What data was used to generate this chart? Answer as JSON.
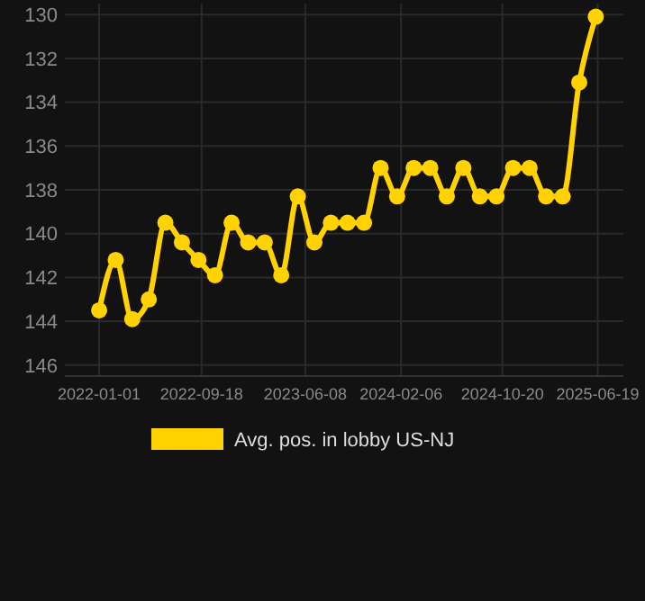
{
  "chart_data": {
    "type": "line",
    "x": [
      "2022-01-01",
      "2022-02-12",
      "2022-03-26",
      "2022-05-07",
      "2022-06-18",
      "2022-07-30",
      "2022-09-10",
      "2022-10-22",
      "2022-12-03",
      "2023-01-14",
      "2023-02-25",
      "2023-04-08",
      "2023-05-20",
      "2023-07-01",
      "2023-08-12",
      "2023-09-23",
      "2023-11-04",
      "2023-12-16",
      "2024-01-27",
      "2024-03-09",
      "2024-04-20",
      "2024-06-01",
      "2024-07-13",
      "2024-08-24",
      "2024-10-05",
      "2024-11-16",
      "2024-12-28",
      "2025-02-08",
      "2025-03-22",
      "2025-05-03",
      "2025-06-14"
    ],
    "series": [
      {
        "name": "Avg. pos. in lobby US-NJ",
        "color": "#ffd200",
        "values": [
          143.5,
          141.2,
          143.9,
          143.0,
          139.5,
          140.4,
          141.2,
          141.9,
          139.5,
          140.4,
          140.4,
          141.9,
          138.3,
          140.4,
          139.5,
          139.5,
          139.5,
          137.0,
          138.3,
          137.0,
          137.0,
          138.3,
          137.0,
          138.3,
          138.3,
          137.0,
          137.0,
          138.3,
          138.3,
          133.1,
          130.1
        ]
      }
    ],
    "xlim": [
      "2021-10-06",
      "2025-08-23"
    ],
    "xticks": [
      "2022-01-01",
      "2022-09-18",
      "2023-06-08",
      "2024-02-06",
      "2024-10-20",
      "2025-06-19"
    ],
    "ylim": [
      146.5,
      129.5
    ],
    "yticks": [
      130,
      132,
      134,
      136,
      138,
      140,
      142,
      144,
      146
    ],
    "grid": true,
    "legend": "bottom",
    "marker": "circle",
    "line_style": "solid"
  }
}
